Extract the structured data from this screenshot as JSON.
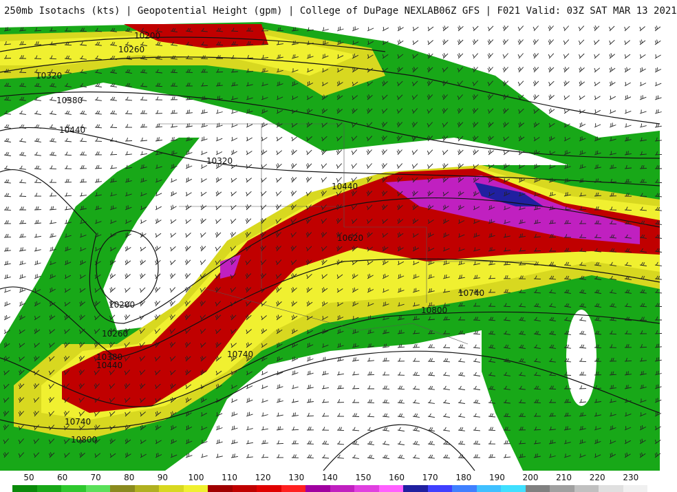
{
  "header": {
    "product": "250mb Isotachs (kts) | Geopotential Height (gpm) | College of DuPage NEXLAB",
    "run": "06Z GFS | F021 Valid: 03Z SAT MAR 13 2021"
  },
  "contour_labels": [
    "10200",
    "10260",
    "10320",
    "10380",
    "10440",
    "10320",
    "10440",
    "10620",
    "10740",
    "10800",
    "10200",
    "10260",
    "10380",
    "10440",
    "10740",
    "10740",
    "10800"
  ],
  "legend": {
    "labels": [
      "50",
      "60",
      "70",
      "80",
      "90",
      "100",
      "110",
      "120",
      "130",
      "140",
      "150",
      "160",
      "170",
      "180",
      "190",
      "200",
      "210",
      "220",
      "230"
    ],
    "colors": [
      "#0a8a0a",
      "#18a818",
      "#2ec82e",
      "#5ae05a",
      "#8a8a1e",
      "#b0b020",
      "#d8d820",
      "#f0f030",
      "#a00000",
      "#c00000",
      "#e00000",
      "#ff2020",
      "#a000a0",
      "#c020c0",
      "#e040e0",
      "#ff60ff",
      "#2020a0",
      "#4040ff",
      "#4080ff",
      "#40c0ff",
      "#40e0ff",
      "#808080",
      "#a0a0a0",
      "#c0c0c0",
      "#e0e0e0",
      "#f0f0f0"
    ]
  }
}
